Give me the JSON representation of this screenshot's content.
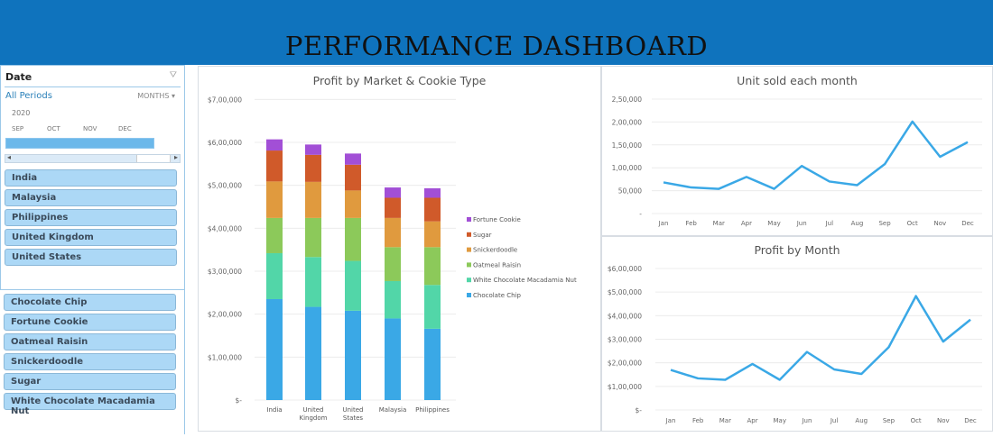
{
  "header": {
    "title": "PERFORMANCE DASHBOARD",
    "color": "#0f73bd"
  },
  "date_slicer": {
    "title": "Date",
    "all_periods": "All Periods",
    "period_level": "MONTHS",
    "year": "2020",
    "months": [
      "SEP",
      "OCT",
      "NOV",
      "DEC"
    ],
    "filter_icon": "filter-clear-icon"
  },
  "market_slicer": {
    "items": [
      "India",
      "Malaysia",
      "Philippines",
      "United Kingdom",
      "United States"
    ]
  },
  "product_slicer": {
    "items": [
      "Chocolate Chip",
      "Fortune Cookie",
      "Oatmeal Raisin",
      "Snickerdoodle",
      "Sugar",
      "White Chocolate Macadamia Nut"
    ]
  },
  "chart_data": [
    {
      "type": "bar",
      "stacked": true,
      "title": "Profit by Market & Cookie Type",
      "categories": [
        "India",
        "United Kingdom",
        "United States",
        "Malaysia",
        "Philippines"
      ],
      "category_labels": [
        [
          "India"
        ],
        [
          "United",
          "Kingdom"
        ],
        [
          "United",
          "States"
        ],
        [
          "Malaysia"
        ],
        [
          "Philippines"
        ]
      ],
      "ylim": [
        0,
        700000
      ],
      "yticks": [
        "$-",
        "$1,00,000",
        "$2,00,000",
        "$3,00,000",
        "$4,00,000",
        "$5,00,000",
        "$6,00,000",
        "$7,00,000"
      ],
      "grid": true,
      "legend_placement": "right",
      "series": [
        {
          "name": "Chocolate Chip",
          "color": "#3aa8e6",
          "values": [
            235000,
            217000,
            208000,
            190000,
            166000
          ]
        },
        {
          "name": "White Chocolate Macadamia Nut",
          "color": "#52d6a8",
          "values": [
            107000,
            116000,
            116000,
            87000,
            102000
          ]
        },
        {
          "name": "Oatmeal Raisin",
          "color": "#8cc95a",
          "values": [
            82000,
            91000,
            100000,
            79000,
            88000
          ]
        },
        {
          "name": "Snickerdoodle",
          "color": "#e09a3e",
          "values": [
            85000,
            84000,
            64000,
            68000,
            60000
          ]
        },
        {
          "name": "Sugar",
          "color": "#d05a2a",
          "values": [
            72000,
            63000,
            60000,
            47000,
            55000
          ]
        },
        {
          "name": "Fortune Cookie",
          "color": "#a24fd6",
          "values": [
            26000,
            24000,
            26000,
            24000,
            22000
          ]
        }
      ]
    },
    {
      "type": "line",
      "title": "Unit sold each month",
      "x": [
        "Jan",
        "Feb",
        "Mar",
        "Apr",
        "May",
        "Jun",
        "Jul",
        "Aug",
        "Sep",
        "Oct",
        "Nov",
        "Dec"
      ],
      "values": [
        68000,
        57000,
        54000,
        80000,
        54000,
        104000,
        70000,
        62000,
        108000,
        201000,
        124000,
        156000
      ],
      "ylim": [
        0,
        250000
      ],
      "yticks": [
        "-",
        "50,000",
        "1,00,000",
        "1,50,000",
        "2,00,000",
        "2,50,000"
      ],
      "grid": true,
      "color": "#3aa8e6"
    },
    {
      "type": "line",
      "title": "Profit by Month",
      "x": [
        "Jan",
        "Feb",
        "Mar",
        "Apr",
        "May",
        "Jun",
        "Jul",
        "Aug",
        "Sep",
        "Oct",
        "Nov",
        "Dec"
      ],
      "values": [
        170000,
        134000,
        128000,
        195000,
        128000,
        246000,
        172000,
        153000,
        266000,
        483000,
        290000,
        383000
      ],
      "ylim": [
        0,
        600000
      ],
      "yticks": [
        "$-",
        "$1,00,000",
        "$2,00,000",
        "$3,00,000",
        "$4,00,000",
        "$5,00,000",
        "$6,00,000"
      ],
      "grid": true,
      "color": "#3aa8e6"
    }
  ]
}
